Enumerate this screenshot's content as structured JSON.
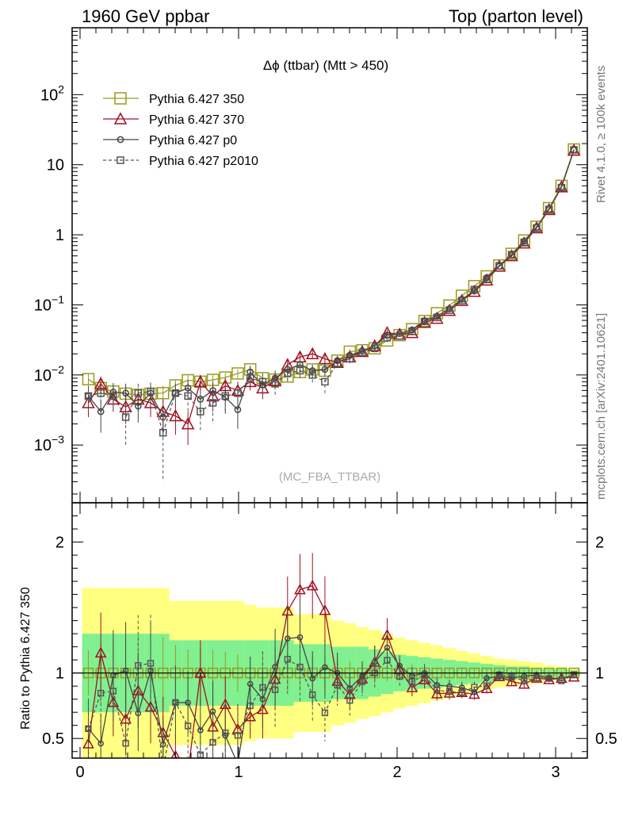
{
  "header": {
    "left": "1960 GeV ppbar",
    "right": "Top (parton level)"
  },
  "side_labels": {
    "rivet": "Rivet 4.1.0, ≥ 100k events",
    "mcplots": "mcplots.cern.ch [arXiv:2401.10621]"
  },
  "chart_data": {
    "type": "line",
    "title": "Δϕ (ttbar) (Mtt > 450)",
    "watermark": "(MC_FBA_TTBAR)",
    "xlabel": "",
    "ylabel": "",
    "ratio_ylabel": "Ratio to Pythia 6.427 350",
    "xlim": [
      -0.05,
      3.2
    ],
    "ylim": [
      0.00015,
      900
    ],
    "ylog": true,
    "ratio_ylim": [
      0.35,
      2.3
    ],
    "legend_position": "top-left",
    "x_ticks": [
      "0",
      "1",
      "2",
      "3"
    ],
    "y_ticks": [
      "10^2",
      "10",
      "1",
      "10^-1",
      "10^-2",
      "10^-3"
    ],
    "ratio_y_ticks": [
      "2",
      "1",
      "0.5"
    ],
    "x": [
      0.0524,
      0.1309,
      0.2094,
      0.288,
      0.3665,
      0.4451,
      0.5236,
      0.6021,
      0.6807,
      0.7592,
      0.8378,
      0.9163,
      0.9948,
      1.0734,
      1.1519,
      1.2305,
      1.309,
      1.3875,
      1.4661,
      1.5446,
      1.6232,
      1.7017,
      1.7802,
      1.8588,
      1.9373,
      2.0159,
      2.0944,
      2.1729,
      2.2515,
      2.33,
      2.4086,
      2.4871,
      2.5656,
      2.6442,
      2.7227,
      2.8013,
      2.8798,
      2.9583,
      3.0369,
      3.1154
    ],
    "series": [
      {
        "name": "Pythia 6.427 350",
        "color": "#9a9a20",
        "marker": "square",
        "dashed": false,
        "values": [
          0.0087,
          0.0065,
          0.0058,
          0.0054,
          0.0052,
          0.0054,
          0.0055,
          0.0071,
          0.0084,
          0.008,
          0.0085,
          0.0092,
          0.0105,
          0.012,
          0.009,
          0.0086,
          0.0095,
          0.011,
          0.012,
          0.0115,
          0.016,
          0.0215,
          0.0225,
          0.024,
          0.031,
          0.037,
          0.045,
          0.059,
          0.076,
          0.098,
          0.135,
          0.185,
          0.255,
          0.365,
          0.535,
          0.83,
          1.3,
          2.4,
          5.0,
          16.5
        ],
        "errors": [
          0.0015,
          0.0015,
          0.0015,
          0.0015,
          0.0015,
          0.0015,
          0.0015,
          0.0015,
          0.0015,
          0.0015,
          0.0015,
          0.0015,
          0.0015,
          0.0015,
          0.0015,
          0.0015,
          0.0015,
          0.0015,
          0.0015,
          0.0015,
          0.002,
          0.002,
          0.002,
          0.002,
          0.002,
          0.002,
          0.003,
          0.003,
          0.003,
          0.004,
          0.005,
          0.006,
          0.008,
          0.01,
          0.01,
          0.02,
          0.03,
          0.04,
          0.08,
          0.15
        ]
      },
      {
        "name": "Pythia 6.427 370",
        "color": "#a01020",
        "marker": "triangle",
        "dashed": false,
        "values": [
          0.004,
          0.0075,
          0.0045,
          0.0035,
          0.0045,
          0.004,
          0.003,
          0.0026,
          0.002,
          0.008,
          0.005,
          0.007,
          0.006,
          0.008,
          0.0065,
          0.0082,
          0.014,
          0.018,
          0.02,
          0.017,
          0.015,
          0.018,
          0.0215,
          0.026,
          0.04,
          0.038,
          0.04,
          0.056,
          0.064,
          0.083,
          0.115,
          0.155,
          0.225,
          0.355,
          0.5,
          0.76,
          1.25,
          2.28,
          4.8,
          16.0
        ],
        "errors": [
          0.0015,
          0.002,
          0.0015,
          0.0015,
          0.0015,
          0.0015,
          0.0015,
          0.0012,
          0.001,
          0.002,
          0.002,
          0.002,
          0.002,
          0.002,
          0.002,
          0.002,
          0.0025,
          0.003,
          0.003,
          0.003,
          0.0025,
          0.0025,
          0.0025,
          0.003,
          0.004,
          0.003,
          0.003,
          0.004,
          0.004,
          0.005,
          0.006,
          0.008,
          0.01,
          0.012,
          0.015,
          0.025,
          0.03,
          0.05,
          0.1,
          0.15
        ]
      },
      {
        "name": "Pythia 6.427 p0",
        "color": "#444444",
        "marker": "circle",
        "dashed": false,
        "values": [
          0.005,
          0.003,
          0.0057,
          0.0055,
          0.0036,
          0.0055,
          0.0025,
          0.0055,
          0.0065,
          0.0045,
          0.006,
          0.0048,
          0.0032,
          0.011,
          0.0072,
          0.009,
          0.012,
          0.014,
          0.0115,
          0.012,
          0.016,
          0.019,
          0.022,
          0.026,
          0.037,
          0.039,
          0.044,
          0.059,
          0.069,
          0.088,
          0.12,
          0.158,
          0.245,
          0.355,
          0.515,
          0.81,
          1.28,
          2.3,
          4.8,
          16.2
        ],
        "errors": [
          0.002,
          0.0015,
          0.002,
          0.002,
          0.0015,
          0.002,
          0.0012,
          0.002,
          0.002,
          0.002,
          0.002,
          0.002,
          0.0015,
          0.0025,
          0.002,
          0.0025,
          0.0025,
          0.003,
          0.0025,
          0.0025,
          0.0025,
          0.0025,
          0.0025,
          0.003,
          0.004,
          0.003,
          0.003,
          0.004,
          0.004,
          0.005,
          0.006,
          0.008,
          0.01,
          0.012,
          0.015,
          0.025,
          0.03,
          0.05,
          0.1,
          0.15
        ]
      },
      {
        "name": "Pythia 6.427 p2010",
        "color": "#555555",
        "marker": "square",
        "dashed": true,
        "values": [
          0.005,
          0.0055,
          0.005,
          0.0025,
          0.0055,
          0.0058,
          0.0015,
          0.0055,
          0.005,
          0.003,
          0.004,
          0.005,
          0.0055,
          0.009,
          0.008,
          0.0075,
          0.0105,
          0.0115,
          0.01,
          0.008,
          0.0145,
          0.017,
          0.021,
          0.024,
          0.034,
          0.036,
          0.042,
          0.058,
          0.066,
          0.084,
          0.115,
          0.165,
          0.23,
          0.36,
          0.52,
          0.78,
          1.25,
          2.3,
          4.7,
          16.3
        ],
        "errors": [
          0.002,
          0.002,
          0.002,
          0.0015,
          0.002,
          0.002,
          0.0012,
          0.002,
          0.002,
          0.0015,
          0.002,
          0.002,
          0.002,
          0.0025,
          0.0025,
          0.0025,
          0.0025,
          0.003,
          0.0025,
          0.0025,
          0.0025,
          0.0025,
          0.0025,
          0.003,
          0.004,
          0.003,
          0.003,
          0.004,
          0.004,
          0.005,
          0.006,
          0.008,
          0.01,
          0.012,
          0.015,
          0.025,
          0.03,
          0.05,
          0.1,
          0.15
        ]
      }
    ],
    "ratio": {
      "reference": "Pythia 6.427 350",
      "band_1sigma_color": "#80f090",
      "band_2sigma_color": "#ffff80",
      "band_1sigma_halfwidth": [
        0.3,
        0.3,
        0.3,
        0.3,
        0.3,
        0.3,
        0.3,
        0.25,
        0.25,
        0.25,
        0.25,
        0.25,
        0.25,
        0.25,
        0.25,
        0.25,
        0.25,
        0.22,
        0.22,
        0.22,
        0.2,
        0.2,
        0.2,
        0.18,
        0.16,
        0.14,
        0.13,
        0.12,
        0.11,
        0.1,
        0.09,
        0.08,
        0.07,
        0.06,
        0.05,
        0.05,
        0.04,
        0.03,
        0.03,
        0.02
      ],
      "band_2sigma_halfwidth": [
        0.65,
        0.65,
        0.65,
        0.65,
        0.65,
        0.65,
        0.65,
        0.55,
        0.55,
        0.55,
        0.55,
        0.55,
        0.55,
        0.52,
        0.5,
        0.5,
        0.5,
        0.45,
        0.45,
        0.45,
        0.4,
        0.38,
        0.35,
        0.33,
        0.3,
        0.27,
        0.25,
        0.23,
        0.21,
        0.19,
        0.17,
        0.15,
        0.13,
        0.11,
        0.1,
        0.09,
        0.08,
        0.06,
        0.05,
        0.04
      ]
    }
  }
}
